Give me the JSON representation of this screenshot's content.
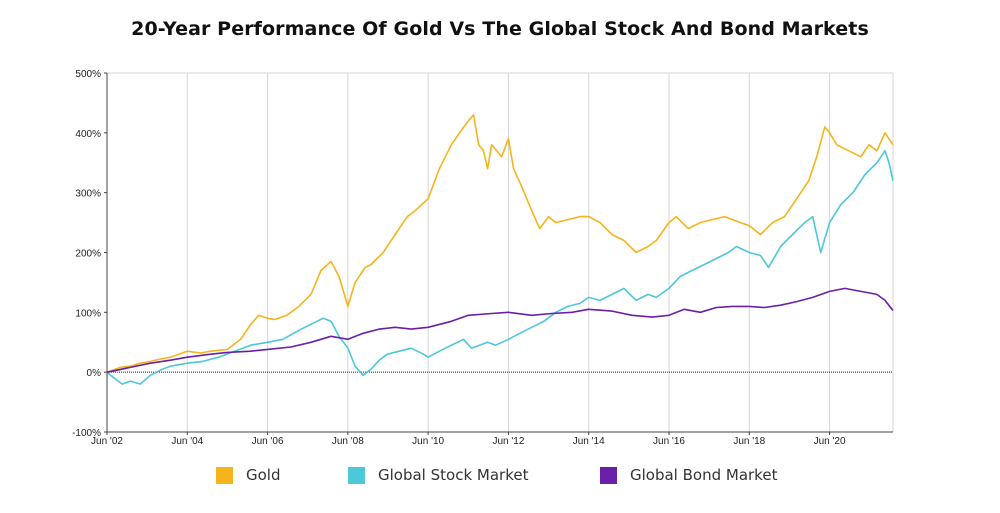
{
  "chart_data": {
    "type": "line",
    "title": "20-Year Performance Of Gold Vs The Global Stock And Bond Markets",
    "xlabel": "",
    "ylabel": "",
    "x_ticks": [
      "Jun '02",
      "Jun '04",
      "Jun '06",
      "Jun '08",
      "Jun '10",
      "Jun '12",
      "Jun '14",
      "Jun '16",
      "Jun '18",
      "Jun '20"
    ],
    "x_range": [
      2002.42,
      2022.0
    ],
    "y_ticks": [
      "-100%",
      "0%",
      "100%",
      "200%",
      "300%",
      "400%",
      "500%"
    ],
    "y_tick_values": [
      -100,
      0,
      100,
      200,
      300,
      400,
      500
    ],
    "ylim": [
      -100,
      500
    ],
    "grid": "vertical at x ticks, zero line dotted",
    "legend_position": "bottom",
    "series": [
      {
        "name": "Gold",
        "color": "#F5B41C",
        "x": [
          2002.42,
          2002.75,
          2003.0,
          2003.25,
          2003.5,
          2003.75,
          2004.0,
          2004.42,
          2004.75,
          2005.0,
          2005.42,
          2005.75,
          2006.0,
          2006.2,
          2006.42,
          2006.6,
          2006.9,
          2007.2,
          2007.5,
          2007.75,
          2008.0,
          2008.2,
          2008.42,
          2008.6,
          2008.85,
          2009.0,
          2009.3,
          2009.6,
          2009.9,
          2010.1,
          2010.42,
          2010.7,
          2011.0,
          2011.2,
          2011.42,
          2011.55,
          2011.68,
          2011.8,
          2011.9,
          2012.0,
          2012.25,
          2012.42,
          2012.55,
          2012.75,
          2013.0,
          2013.2,
          2013.42,
          2013.6,
          2013.9,
          2014.2,
          2014.42,
          2014.7,
          2015.0,
          2015.3,
          2015.6,
          2015.9,
          2016.1,
          2016.42,
          2016.6,
          2016.9,
          2017.2,
          2017.5,
          2017.8,
          2018.2,
          2018.42,
          2018.7,
          2019.0,
          2019.3,
          2019.6,
          2019.9,
          2020.1,
          2020.3,
          2020.42,
          2020.6,
          2020.9,
          2021.2,
          2021.4,
          2021.6,
          2021.8,
          2021.9,
          2022.0
        ],
        "values": [
          0,
          8,
          10,
          15,
          18,
          22,
          25,
          35,
          32,
          35,
          38,
          55,
          80,
          95,
          90,
          88,
          95,
          110,
          130,
          170,
          185,
          160,
          110,
          150,
          175,
          180,
          200,
          230,
          260,
          270,
          290,
          340,
          380,
          400,
          420,
          430,
          380,
          370,
          340,
          380,
          360,
          390,
          340,
          310,
          270,
          240,
          260,
          250,
          255,
          260,
          260,
          250,
          230,
          220,
          200,
          210,
          220,
          250,
          260,
          240,
          250,
          255,
          260,
          250,
          245,
          230,
          250,
          260,
          290,
          320,
          360,
          410,
          400,
          380,
          370,
          360,
          380,
          370,
          400,
          390,
          380
        ]
      },
      {
        "name": "Global Stock Market",
        "color": "#4BC8DA",
        "x": [
          2002.42,
          2002.6,
          2002.8,
          2003.0,
          2003.25,
          2003.5,
          2003.8,
          2004.0,
          2004.42,
          2004.8,
          2005.2,
          2005.6,
          2006.0,
          2006.42,
          2006.8,
          2007.2,
          2007.5,
          2007.8,
          2008.0,
          2008.2,
          2008.42,
          2008.6,
          2008.8,
          2009.0,
          2009.2,
          2009.4,
          2009.7,
          2010.0,
          2010.3,
          2010.42,
          2010.7,
          2011.0,
          2011.3,
          2011.5,
          2011.7,
          2011.9,
          2012.1,
          2012.42,
          2012.7,
          2013.0,
          2013.3,
          2013.6,
          2013.9,
          2014.2,
          2014.42,
          2014.7,
          2015.0,
          2015.3,
          2015.6,
          2015.9,
          2016.1,
          2016.42,
          2016.7,
          2017.0,
          2017.3,
          2017.6,
          2017.9,
          2018.1,
          2018.42,
          2018.7,
          2018.9,
          2019.2,
          2019.5,
          2019.8,
          2020.0,
          2020.2,
          2020.42,
          2020.7,
          2021.0,
          2021.3,
          2021.6,
          2021.8,
          2021.9,
          2022.0
        ],
        "values": [
          0,
          -10,
          -20,
          -15,
          -20,
          -5,
          5,
          10,
          15,
          18,
          25,
          35,
          45,
          50,
          55,
          70,
          80,
          90,
          85,
          60,
          40,
          10,
          -5,
          5,
          20,
          30,
          35,
          40,
          30,
          25,
          35,
          45,
          55,
          40,
          45,
          50,
          45,
          55,
          65,
          75,
          85,
          100,
          110,
          115,
          125,
          120,
          130,
          140,
          120,
          130,
          125,
          140,
          160,
          170,
          180,
          190,
          200,
          210,
          200,
          195,
          175,
          210,
          230,
          250,
          260,
          200,
          250,
          280,
          300,
          330,
          350,
          370,
          350,
          320
        ]
      },
      {
        "name": "Global Bond Market",
        "color": "#6A1FA8",
        "x": [
          2002.42,
          2003.0,
          2003.5,
          2004.0,
          2004.42,
          2005.0,
          2005.42,
          2006.0,
          2006.42,
          2007.0,
          2007.5,
          2008.0,
          2008.42,
          2008.8,
          2009.2,
          2009.6,
          2010.0,
          2010.42,
          2011.0,
          2011.42,
          2012.0,
          2012.42,
          2013.0,
          2013.5,
          2014.0,
          2014.42,
          2015.0,
          2015.5,
          2016.0,
          2016.42,
          2016.8,
          2017.2,
          2017.6,
          2018.0,
          2018.42,
          2018.8,
          2019.2,
          2019.6,
          2020.0,
          2020.42,
          2020.8,
          2021.2,
          2021.6,
          2021.8,
          2022.0
        ],
        "values": [
          0,
          8,
          15,
          20,
          25,
          30,
          33,
          35,
          38,
          42,
          50,
          60,
          55,
          65,
          72,
          75,
          72,
          75,
          85,
          95,
          98,
          100,
          95,
          98,
          100,
          105,
          102,
          95,
          92,
          95,
          105,
          100,
          108,
          110,
          110,
          108,
          112,
          118,
          125,
          135,
          140,
          135,
          130,
          120,
          103
        ]
      }
    ]
  }
}
